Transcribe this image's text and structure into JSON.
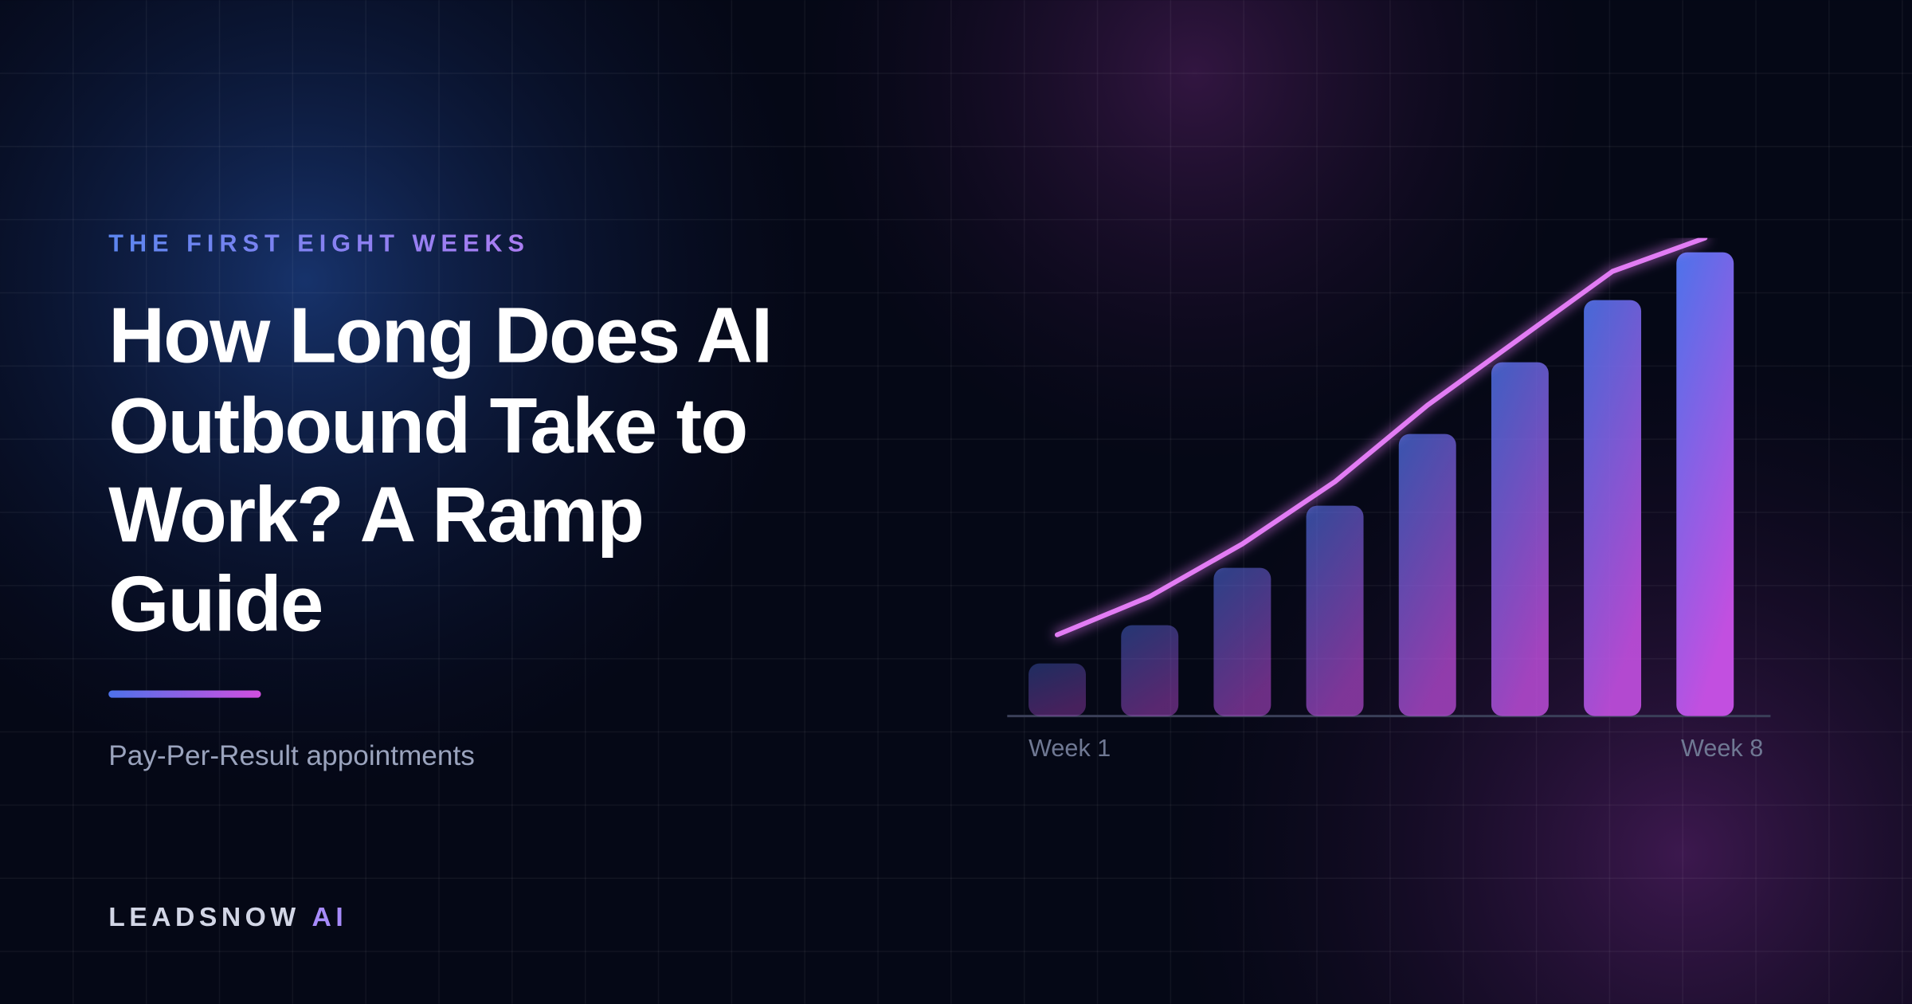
{
  "eyebrow": "THE FIRST EIGHT WEEKS",
  "title": [
    "How Long Does AI",
    "Outbound Take to",
    "Work? A Ramp",
    "Guide"
  ],
  "subtitle": "Pay-Per-Result appointments",
  "brand": {
    "name": "LEADSNOW",
    "suffix": "AI"
  },
  "chart_data": {
    "type": "bar",
    "categories": [
      "Week 1",
      null,
      null,
      null,
      null,
      null,
      null,
      "Week 8"
    ],
    "series": [
      {
        "type": "bar",
        "colors": [
          "#4d72ea",
          "#c24fe0"
        ],
        "values": [
          11,
          19,
          31,
          44,
          59,
          74,
          87,
          97
        ]
      },
      {
        "type": "line",
        "color": "#e27cf4",
        "values": [
          17,
          25,
          36,
          49,
          65,
          79,
          93,
          100
        ]
      }
    ],
    "ylim": [
      0,
      100
    ]
  }
}
